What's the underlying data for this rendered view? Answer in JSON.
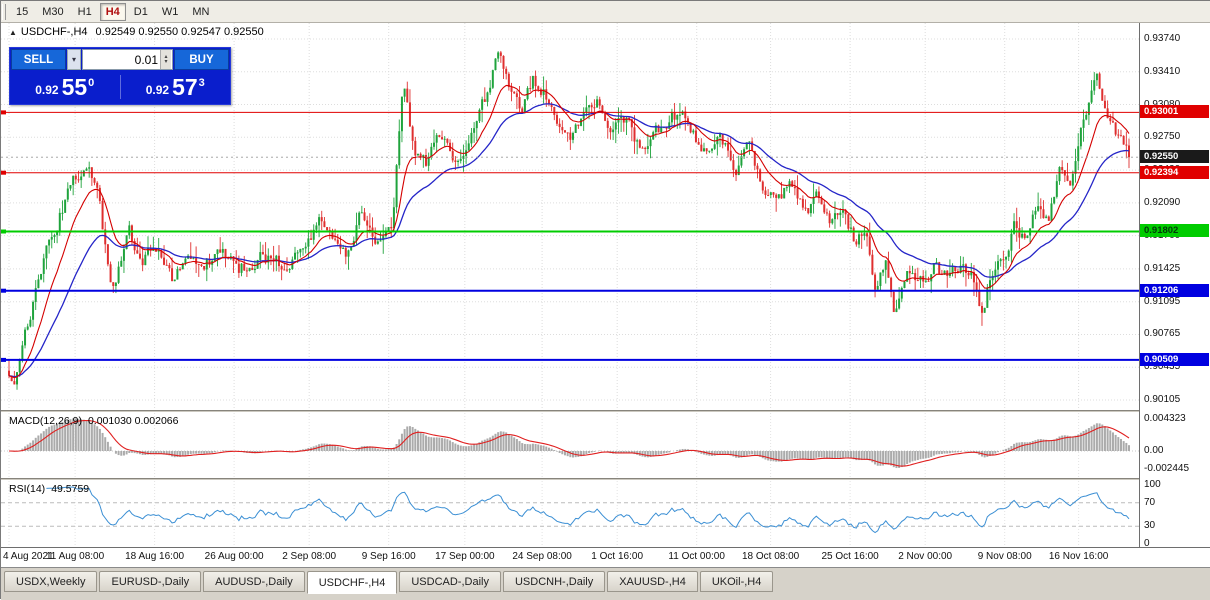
{
  "toolbar": {
    "timeframes": [
      "15",
      "M30",
      "H1",
      "H4",
      "D1",
      "W1",
      "MN"
    ],
    "active": "H4"
  },
  "chart": {
    "collapse_icon": "▲",
    "title": "USDCHF-,H4",
    "ohlc": "0.92549 0.92550 0.92547 0.92550"
  },
  "trade_panel": {
    "sell_label": "SELL",
    "buy_label": "BUY",
    "lot": "0.01",
    "dropdown_icon": "▾",
    "spin_up_icon": "▴",
    "spin_down_icon": "▾",
    "sell_price": {
      "prefix": "0.92",
      "big": "55",
      "sup": "0"
    },
    "buy_price": {
      "prefix": "0.92",
      "big": "57",
      "sup": "3"
    },
    "colors": {
      "panel": "#0A1ECC",
      "button": "#1667D9"
    }
  },
  "price_axis": {
    "labels": [
      "0.93740",
      "0.93410",
      "0.93080",
      "0.92750",
      "0.92420",
      "0.92090",
      "0.91760",
      "0.91425",
      "0.91095",
      "0.90765",
      "0.90435",
      "0.90105"
    ]
  },
  "hlines": [
    {
      "value": 0.93001,
      "label": "0.93001",
      "color": "#E00000",
      "width": 1,
      "badge_bg": "#E00000",
      "badge_fg": "#FFFFFF"
    },
    {
      "value": 0.92394,
      "label": "0.92394",
      "color": "#E00000",
      "width": 1,
      "badge_bg": "#E00000",
      "badge_fg": "#FFFFFF"
    },
    {
      "value": 0.91802,
      "label": "0.91802",
      "color": "#00CC00",
      "width": 2,
      "badge_bg": "#00CC00",
      "badge_fg": "#00390A"
    },
    {
      "value": 0.91206,
      "label": "0.91206",
      "color": "#0000E0",
      "width": 2,
      "badge_bg": "#0000E0",
      "badge_fg": "#FFFFFF"
    },
    {
      "value": 0.90509,
      "label": "0.90509",
      "color": "#0000E0",
      "width": 2,
      "badge_bg": "#0000E0",
      "badge_fg": "#FFFFFF"
    }
  ],
  "current_price": {
    "value": 0.9255,
    "label": "0.92550",
    "badge_bg": "#1A1A1A",
    "badge_fg": "#FFFFFF"
  },
  "time_axis": [
    {
      "label": "4 Aug 2021",
      "f": 0.0
    },
    {
      "label": "11 Aug 08:00",
      "f": 0.059
    },
    {
      "label": "18 Aug 16:00",
      "f": 0.13
    },
    {
      "label": "26 Aug 00:00",
      "f": 0.201
    },
    {
      "label": "2 Sep 08:00",
      "f": 0.268
    },
    {
      "label": "9 Sep 16:00",
      "f": 0.339
    },
    {
      "label": "17 Sep 00:00",
      "f": 0.407
    },
    {
      "label": "24 Sep 08:00",
      "f": 0.476
    },
    {
      "label": "1 Oct 16:00",
      "f": 0.543
    },
    {
      "label": "11 Oct 00:00",
      "f": 0.614
    },
    {
      "label": "18 Oct 08:00",
      "f": 0.68
    },
    {
      "label": "25 Oct 16:00",
      "f": 0.751
    },
    {
      "label": "2 Nov 00:00",
      "f": 0.818
    },
    {
      "label": "9 Nov 08:00",
      "f": 0.889
    },
    {
      "label": "16 Nov 16:00",
      "f": 0.955
    }
  ],
  "macd": {
    "label": "MACD(12,26,9)",
    "values": "0.001030 0.002066",
    "fast": 12,
    "slow": 26,
    "signal_period": 9,
    "axis": [
      "0.004323",
      "0.00",
      "-0.002445"
    ],
    "axis_max": 0.004323,
    "histogram_color": "#ABABAB",
    "signal_color": "#E02020"
  },
  "rsi": {
    "label": "RSI(14)",
    "value": "49.5759",
    "period": 14,
    "axis": [
      "100",
      "70",
      "30",
      "0"
    ],
    "levels": [
      70,
      30
    ],
    "line_color": "#3B8FD4"
  },
  "tabs": [
    "USDX,Weekly",
    "EURUSD-,Daily",
    "AUDUSD-,Daily",
    "USDCHF-,H4",
    "USDCAD-,Daily",
    "USDCNH-,Daily",
    "XAUUSD-,H4",
    "UKOil-,H4"
  ],
  "chart_data": {
    "type": "candlestick",
    "symbol": "USDCHF-",
    "timeframe": "H4",
    "title": "USDCHF-,H4",
    "y_range": [
      0.90105,
      0.9374
    ],
    "x_range": [
      "4 Aug 2021",
      "17 Nov 2021"
    ],
    "last_close": 0.9255,
    "num_candles": 420,
    "up_color": "#1FA33C",
    "down_color": "#DF2F2F",
    "ma_fast_color": "#D40000",
    "ma_slow_color": "#2525C8",
    "grid": true,
    "hline_values": [
      0.93001,
      0.92394,
      0.91802,
      0.91206,
      0.90509
    ],
    "close_path_anchors": [
      [
        0.0,
        0.904
      ],
      [
        0.004,
        0.9016
      ],
      [
        0.01,
        0.9048
      ],
      [
        0.018,
        0.9092
      ],
      [
        0.03,
        0.915
      ],
      [
        0.045,
        0.9196
      ],
      [
        0.058,
        0.9232
      ],
      [
        0.07,
        0.9243
      ],
      [
        0.08,
        0.9218
      ],
      [
        0.092,
        0.9112
      ],
      [
        0.107,
        0.9182
      ],
      [
        0.118,
        0.9146
      ],
      [
        0.13,
        0.9168
      ],
      [
        0.145,
        0.913
      ],
      [
        0.158,
        0.9162
      ],
      [
        0.172,
        0.9143
      ],
      [
        0.188,
        0.916
      ],
      [
        0.205,
        0.9141
      ],
      [
        0.225,
        0.9155
      ],
      [
        0.248,
        0.9146
      ],
      [
        0.265,
        0.9162
      ],
      [
        0.278,
        0.9196
      ],
      [
        0.292,
        0.9172
      ],
      [
        0.303,
        0.9158
      ],
      [
        0.315,
        0.9203
      ],
      [
        0.33,
        0.9172
      ],
      [
        0.342,
        0.9185
      ],
      [
        0.352,
        0.9328
      ],
      [
        0.363,
        0.9256
      ],
      [
        0.373,
        0.9248
      ],
      [
        0.386,
        0.9282
      ],
      [
        0.398,
        0.9242
      ],
      [
        0.414,
        0.9282
      ],
      [
        0.428,
        0.9322
      ],
      [
        0.438,
        0.9368
      ],
      [
        0.448,
        0.9318
      ],
      [
        0.458,
        0.9305
      ],
      [
        0.468,
        0.9332
      ],
      [
        0.478,
        0.932
      ],
      [
        0.49,
        0.9295
      ],
      [
        0.503,
        0.9276
      ],
      [
        0.515,
        0.93
      ],
      [
        0.526,
        0.9316
      ],
      [
        0.538,
        0.9276
      ],
      [
        0.55,
        0.9293
      ],
      [
        0.565,
        0.926
      ],
      [
        0.578,
        0.928
      ],
      [
        0.592,
        0.9296
      ],
      [
        0.605,
        0.9294
      ],
      [
        0.62,
        0.9262
      ],
      [
        0.635,
        0.9281
      ],
      [
        0.648,
        0.9242
      ],
      [
        0.66,
        0.9263
      ],
      [
        0.673,
        0.9226
      ],
      [
        0.686,
        0.9208
      ],
      [
        0.698,
        0.9235
      ],
      [
        0.71,
        0.9196
      ],
      [
        0.722,
        0.9216
      ],
      [
        0.734,
        0.9186
      ],
      [
        0.746,
        0.9202
      ],
      [
        0.756,
        0.9166
      ],
      [
        0.766,
        0.9182
      ],
      [
        0.774,
        0.9122
      ],
      [
        0.783,
        0.9148
      ],
      [
        0.791,
        0.9093
      ],
      [
        0.801,
        0.914
      ],
      [
        0.813,
        0.9126
      ],
      [
        0.826,
        0.9146
      ],
      [
        0.839,
        0.9131
      ],
      [
        0.851,
        0.9149
      ],
      [
        0.862,
        0.9133
      ],
      [
        0.869,
        0.9102
      ],
      [
        0.878,
        0.9141
      ],
      [
        0.888,
        0.9156
      ],
      [
        0.898,
        0.9186
      ],
      [
        0.908,
        0.9168
      ],
      [
        0.918,
        0.9206
      ],
      [
        0.928,
        0.9189
      ],
      [
        0.938,
        0.9246
      ],
      [
        0.948,
        0.9233
      ],
      [
        0.958,
        0.9291
      ],
      [
        0.966,
        0.932
      ],
      [
        0.972,
        0.9333
      ],
      [
        0.98,
        0.9301
      ],
      [
        0.988,
        0.9283
      ],
      [
        1.0,
        0.9255
      ]
    ]
  }
}
